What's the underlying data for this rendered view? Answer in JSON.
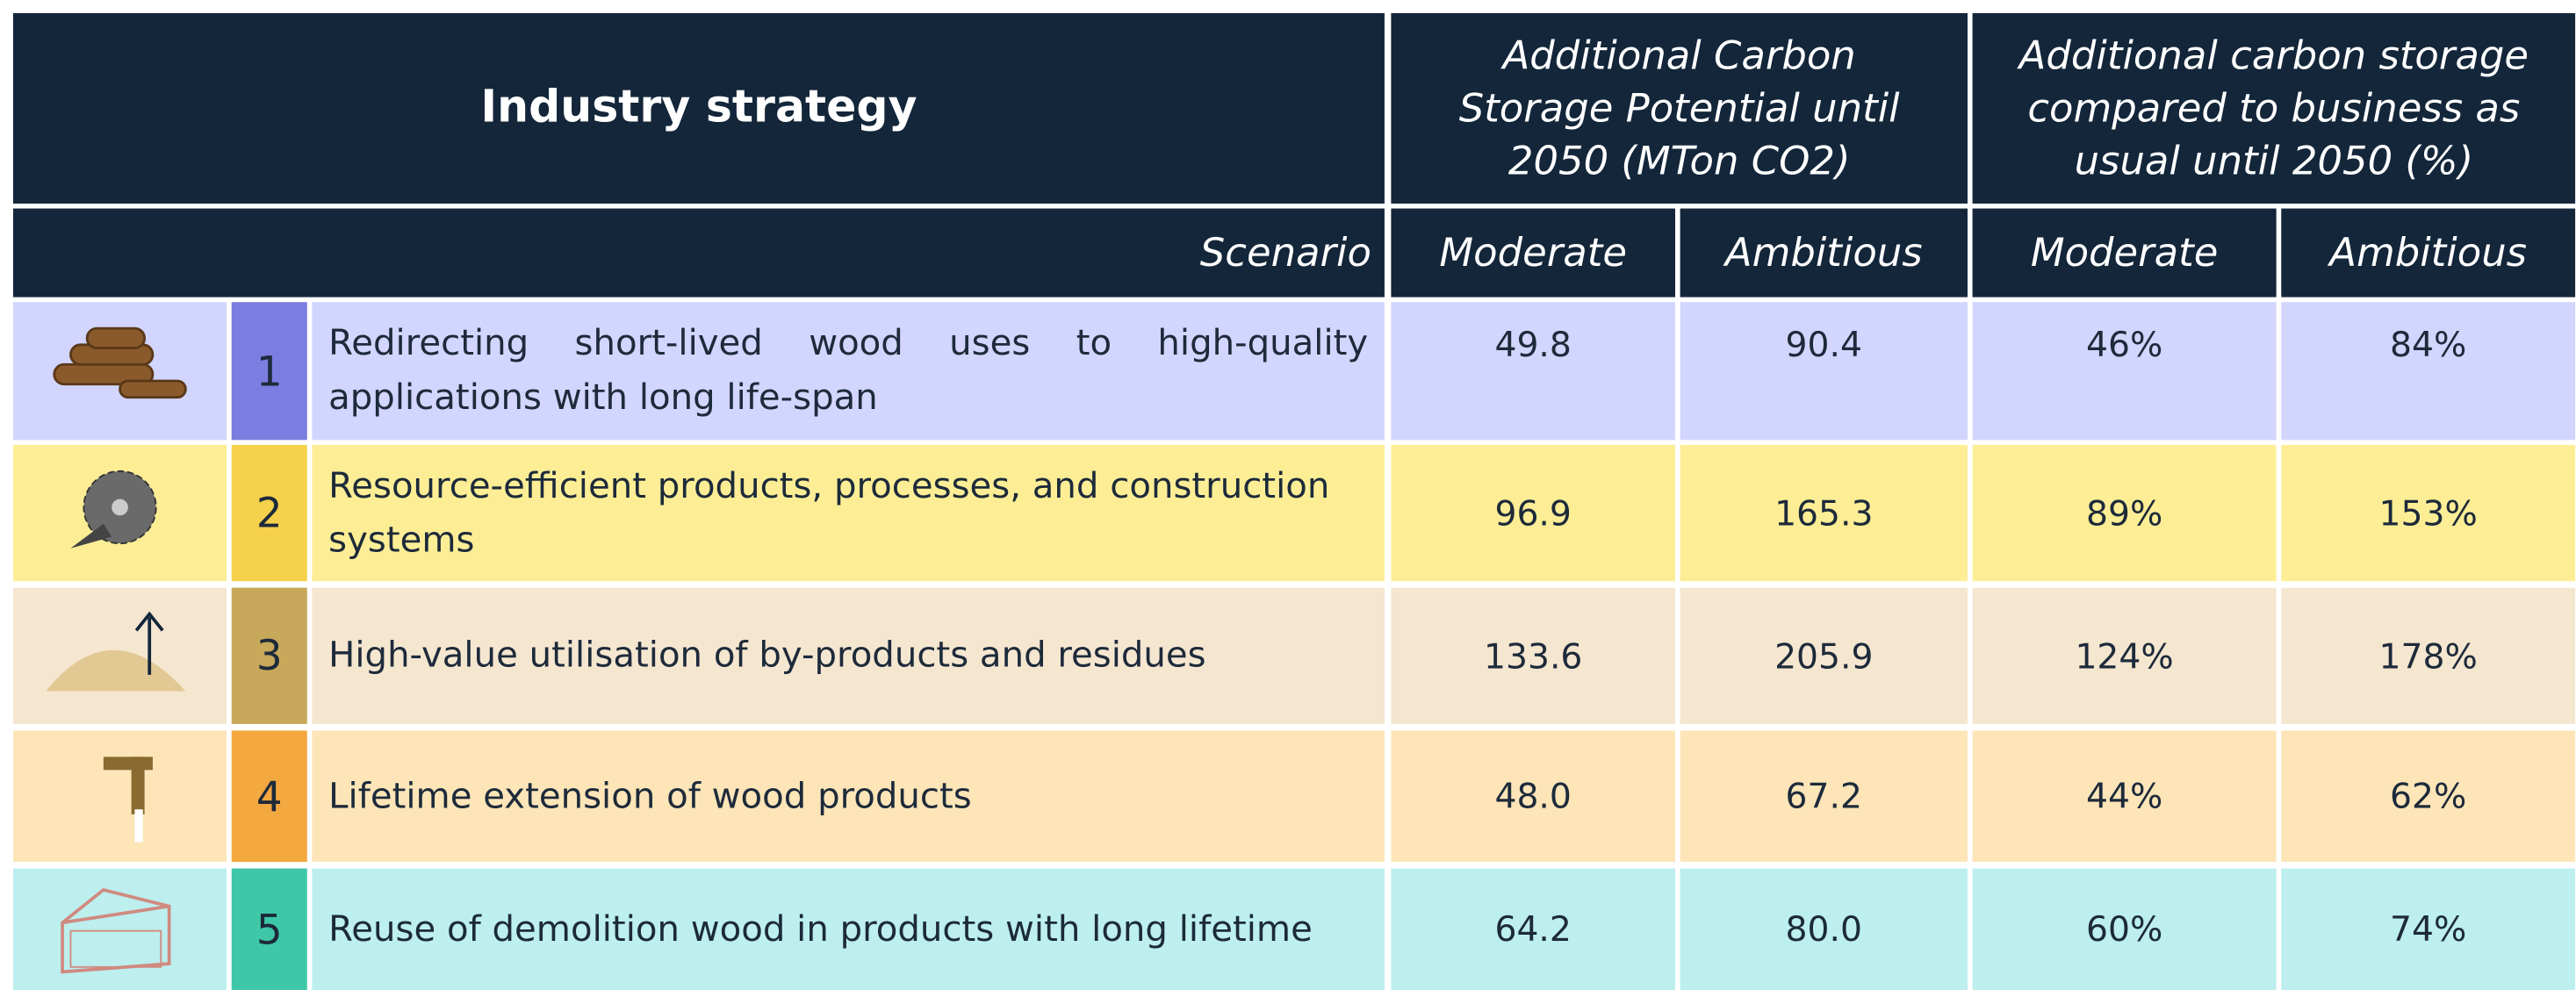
{
  "header": {
    "strategy": "Industry strategy",
    "group1": "Additional Carbon Storage Potential until 2050 (MTon CO2)",
    "group2": "Additional carbon storage compared to business as usual until 2050 (%)",
    "scenario": "Scenario",
    "columns": [
      "Moderate",
      "Ambitious",
      "Moderate",
      "Ambitious"
    ]
  },
  "rows": [
    {
      "number": "1",
      "strategy": "Redirecting short-lived wood uses to high-quality applications with long life-span",
      "values": [
        "49.8",
        "90.4",
        "46%",
        "84%"
      ]
    },
    {
      "number": "2",
      "strategy": "Resource-efficient products, processes, and construction systems",
      "values": [
        "96.9",
        "165.3",
        "89%",
        "153%"
      ]
    },
    {
      "number": "3",
      "strategy": "High-value utilisation of by-products and residues",
      "values": [
        "133.6",
        "205.9",
        "124%",
        "178%"
      ]
    },
    {
      "number": "4",
      "strategy": "Lifetime extension of wood products",
      "values": [
        "48.0",
        "67.2",
        "44%",
        "62%"
      ]
    },
    {
      "number": "5",
      "strategy": "Reuse of demolition wood in products with long lifetime",
      "values": [
        "64.2",
        "80.0",
        "60%",
        "74%"
      ]
    }
  ]
}
